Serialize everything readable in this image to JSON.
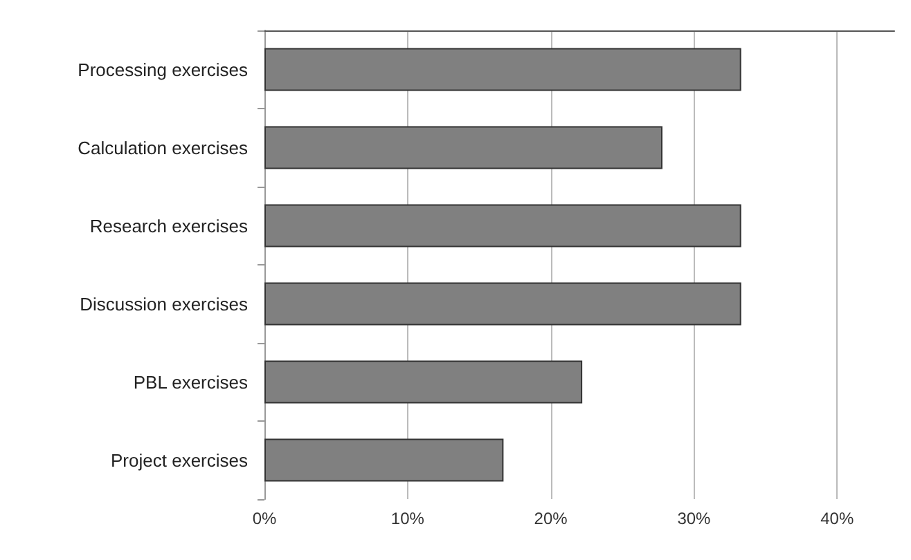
{
  "chart_data": {
    "type": "bar",
    "orientation": "horizontal",
    "categories": [
      "Processing exercises",
      "Calculation exercises",
      "Research exercises",
      "Discussion exercises",
      "PBL exercises",
      "Project exercises"
    ],
    "values": [
      33.3,
      27.8,
      33.3,
      33.3,
      22.2,
      16.7
    ],
    "color": "#808080",
    "xlim": [
      0,
      44
    ],
    "xticks": [
      {
        "value": 0,
        "label": "0%"
      },
      {
        "value": 10,
        "label": "10%"
      },
      {
        "value": 20,
        "label": "20%"
      },
      {
        "value": 30,
        "label": "30%"
      },
      {
        "value": 40,
        "label": "40%"
      }
    ],
    "grid": "x"
  }
}
